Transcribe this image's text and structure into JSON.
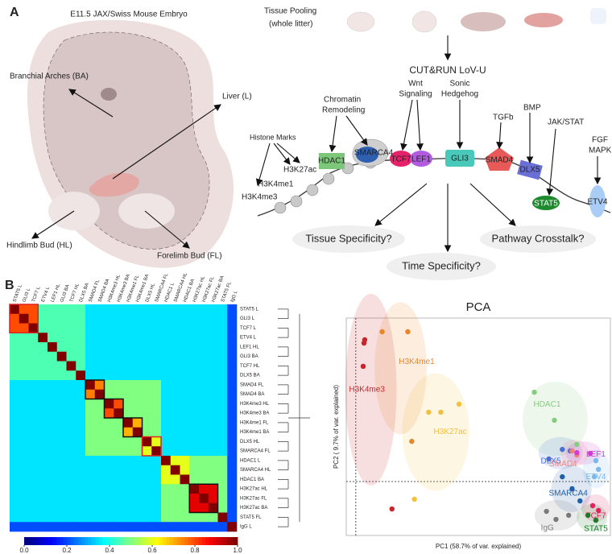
{
  "panel_labels": [
    "A",
    "B"
  ],
  "panel_a": {
    "embryo_title": "E11.5 JAX/Swiss Mouse Embryo",
    "tissues": [
      "Branchial Arches (BA)",
      "Liver (L)",
      "Hindlimb Bud (HL)",
      "Forelimb Bud (FL)"
    ],
    "pooling": [
      "Tissue Pooling",
      "(whole litter)"
    ],
    "method": "CUT&RUN LoV-U",
    "pathways": {
      "chromatin": [
        "Chromatin",
        "Remodeling"
      ],
      "wnt": [
        "Wnt",
        "Signaling"
      ],
      "shh": [
        "Sonic",
        "Hedgehog"
      ],
      "tgfb": "TGFb",
      "bmp": "BMP",
      "jak": "JAK/STAT",
      "fgf": [
        "FGF",
        "MAPK"
      ],
      "histone": "Histone Marks"
    },
    "histone_marks": [
      "H3K27ac",
      "H3K4me1",
      "H3K4me3"
    ],
    "proteins": [
      "HDAC1",
      "SMARCA4",
      "TCF7",
      "LEF1",
      "GLI3",
      "SMAD4",
      "DLX5",
      "STAT5",
      "ETV4"
    ],
    "questions": [
      "Tissue Specificity?",
      "Time Specificity?",
      "Pathway Crosstalk?"
    ]
  },
  "chart_data": [
    {
      "type": "heatmap",
      "categories": [
        "STAT5 L",
        "GLI3 L",
        "TCF7 L",
        "ETV4 L",
        "LEF1 HL",
        "GLI3 BA",
        "TCF7 HL",
        "DLX5 BA",
        "SMAD4 FL",
        "SMAD4 BA",
        "H3K4me3 HL",
        "H3K4me3 BA",
        "H3K4me1 FL",
        "H3K4me1 BA",
        "DLX5 HL",
        "SMARCA4 FL",
        "HDAC1 L",
        "SMARCA4 HL",
        "HDAC1 BA",
        "H3K27ac HL",
        "H3K27ac FL",
        "H3K27ac BA",
        "STAT5 FL",
        "IgG L"
      ],
      "values": [
        [
          1,
          0.8,
          0.8,
          0.45,
          0.45,
          0.45,
          0.45,
          0.45,
          0.35,
          0.35,
          0.35,
          0.35,
          0.35,
          0.35,
          0.35,
          0.35,
          0.35,
          0.35,
          0.35,
          0.35,
          0.35,
          0.35,
          0.35,
          0.2
        ],
        [
          0.8,
          1,
          0.8,
          0.45,
          0.45,
          0.45,
          0.45,
          0.45,
          0.35,
          0.35,
          0.35,
          0.35,
          0.35,
          0.35,
          0.35,
          0.35,
          0.35,
          0.35,
          0.35,
          0.35,
          0.35,
          0.35,
          0.35,
          0.2
        ],
        [
          0.8,
          0.8,
          1,
          0.45,
          0.45,
          0.45,
          0.45,
          0.45,
          0.35,
          0.35,
          0.35,
          0.35,
          0.35,
          0.35,
          0.35,
          0.35,
          0.35,
          0.35,
          0.35,
          0.35,
          0.35,
          0.35,
          0.35,
          0.2
        ],
        [
          0.45,
          0.45,
          0.45,
          1,
          0.45,
          0.45,
          0.45,
          0.45,
          0.35,
          0.35,
          0.35,
          0.35,
          0.35,
          0.35,
          0.35,
          0.35,
          0.35,
          0.35,
          0.35,
          0.35,
          0.35,
          0.35,
          0.35,
          0.2
        ],
        [
          0.45,
          0.45,
          0.45,
          0.45,
          1,
          0.45,
          0.45,
          0.45,
          0.35,
          0.35,
          0.35,
          0.35,
          0.35,
          0.35,
          0.35,
          0.35,
          0.35,
          0.35,
          0.35,
          0.35,
          0.35,
          0.35,
          0.35,
          0.2
        ],
        [
          0.45,
          0.45,
          0.45,
          0.45,
          0.45,
          1,
          0.45,
          0.45,
          0.35,
          0.35,
          0.35,
          0.35,
          0.35,
          0.35,
          0.35,
          0.35,
          0.35,
          0.35,
          0.35,
          0.35,
          0.35,
          0.35,
          0.35,
          0.2
        ],
        [
          0.45,
          0.45,
          0.45,
          0.45,
          0.45,
          0.45,
          1,
          0.45,
          0.35,
          0.35,
          0.35,
          0.35,
          0.35,
          0.35,
          0.35,
          0.35,
          0.35,
          0.35,
          0.35,
          0.35,
          0.35,
          0.35,
          0.35,
          0.2
        ],
        [
          0.45,
          0.45,
          0.45,
          0.45,
          0.45,
          0.45,
          0.45,
          1,
          0.35,
          0.35,
          0.35,
          0.35,
          0.35,
          0.35,
          0.35,
          0.35,
          0.35,
          0.35,
          0.35,
          0.35,
          0.35,
          0.35,
          0.35,
          0.2
        ],
        [
          0.35,
          0.35,
          0.35,
          0.35,
          0.35,
          0.35,
          0.35,
          0.35,
          1,
          0.75,
          0.5,
          0.5,
          0.5,
          0.5,
          0.5,
          0.5,
          0.35,
          0.35,
          0.35,
          0.35,
          0.35,
          0.35,
          0.35,
          0.2
        ],
        [
          0.35,
          0.35,
          0.35,
          0.35,
          0.35,
          0.35,
          0.35,
          0.35,
          0.75,
          1,
          0.5,
          0.5,
          0.5,
          0.5,
          0.5,
          0.5,
          0.35,
          0.35,
          0.35,
          0.35,
          0.35,
          0.35,
          0.35,
          0.2
        ],
        [
          0.35,
          0.35,
          0.35,
          0.35,
          0.35,
          0.35,
          0.35,
          0.35,
          0.5,
          0.5,
          1,
          0.8,
          0.5,
          0.5,
          0.5,
          0.5,
          0.35,
          0.35,
          0.35,
          0.35,
          0.35,
          0.35,
          0.35,
          0.2
        ],
        [
          0.35,
          0.35,
          0.35,
          0.35,
          0.35,
          0.35,
          0.35,
          0.35,
          0.5,
          0.5,
          0.8,
          1,
          0.5,
          0.5,
          0.5,
          0.5,
          0.35,
          0.35,
          0.35,
          0.35,
          0.35,
          0.35,
          0.35,
          0.2
        ],
        [
          0.35,
          0.35,
          0.35,
          0.35,
          0.35,
          0.35,
          0.35,
          0.35,
          0.5,
          0.5,
          0.5,
          0.5,
          1,
          0.7,
          0.5,
          0.5,
          0.35,
          0.35,
          0.35,
          0.35,
          0.35,
          0.35,
          0.35,
          0.2
        ],
        [
          0.35,
          0.35,
          0.35,
          0.35,
          0.35,
          0.35,
          0.35,
          0.35,
          0.5,
          0.5,
          0.5,
          0.5,
          0.7,
          1,
          0.5,
          0.5,
          0.35,
          0.35,
          0.35,
          0.35,
          0.35,
          0.35,
          0.35,
          0.2
        ],
        [
          0.35,
          0.35,
          0.35,
          0.35,
          0.35,
          0.35,
          0.35,
          0.35,
          0.5,
          0.5,
          0.5,
          0.5,
          0.5,
          0.5,
          1,
          0.6,
          0.35,
          0.35,
          0.35,
          0.35,
          0.35,
          0.35,
          0.35,
          0.2
        ],
        [
          0.35,
          0.35,
          0.35,
          0.35,
          0.35,
          0.35,
          0.35,
          0.35,
          0.5,
          0.5,
          0.5,
          0.5,
          0.5,
          0.5,
          0.6,
          1,
          0.35,
          0.35,
          0.35,
          0.35,
          0.35,
          0.35,
          0.35,
          0.2
        ],
        [
          0.35,
          0.35,
          0.35,
          0.35,
          0.35,
          0.35,
          0.35,
          0.35,
          0.35,
          0.35,
          0.35,
          0.35,
          0.35,
          0.35,
          0.35,
          0.35,
          1,
          0.6,
          0.6,
          0.5,
          0.5,
          0.5,
          0.5,
          0.2
        ],
        [
          0.35,
          0.35,
          0.35,
          0.35,
          0.35,
          0.35,
          0.35,
          0.35,
          0.35,
          0.35,
          0.35,
          0.35,
          0.35,
          0.35,
          0.35,
          0.35,
          0.6,
          1,
          0.6,
          0.5,
          0.5,
          0.5,
          0.5,
          0.2
        ],
        [
          0.35,
          0.35,
          0.35,
          0.35,
          0.35,
          0.35,
          0.35,
          0.35,
          0.35,
          0.35,
          0.35,
          0.35,
          0.35,
          0.35,
          0.35,
          0.35,
          0.6,
          0.6,
          1,
          0.5,
          0.5,
          0.5,
          0.5,
          0.2
        ],
        [
          0.35,
          0.35,
          0.35,
          0.35,
          0.35,
          0.35,
          0.35,
          0.35,
          0.35,
          0.35,
          0.35,
          0.35,
          0.35,
          0.35,
          0.35,
          0.35,
          0.5,
          0.5,
          0.5,
          1,
          0.9,
          0.9,
          0.5,
          0.2
        ],
        [
          0.35,
          0.35,
          0.35,
          0.35,
          0.35,
          0.35,
          0.35,
          0.35,
          0.35,
          0.35,
          0.35,
          0.35,
          0.35,
          0.35,
          0.35,
          0.35,
          0.5,
          0.5,
          0.5,
          0.9,
          1,
          0.9,
          0.5,
          0.2
        ],
        [
          0.35,
          0.35,
          0.35,
          0.35,
          0.35,
          0.35,
          0.35,
          0.35,
          0.35,
          0.35,
          0.35,
          0.35,
          0.35,
          0.35,
          0.35,
          0.35,
          0.5,
          0.5,
          0.5,
          0.9,
          0.9,
          1,
          0.5,
          0.2
        ],
        [
          0.35,
          0.35,
          0.35,
          0.35,
          0.35,
          0.35,
          0.35,
          0.35,
          0.35,
          0.35,
          0.35,
          0.35,
          0.35,
          0.35,
          0.35,
          0.35,
          0.5,
          0.5,
          0.5,
          0.5,
          0.5,
          0.5,
          1,
          0.2
        ],
        [
          0.2,
          0.2,
          0.2,
          0.2,
          0.2,
          0.2,
          0.2,
          0.2,
          0.2,
          0.2,
          0.2,
          0.2,
          0.2,
          0.2,
          0.2,
          0.2,
          0.2,
          0.2,
          0.2,
          0.2,
          0.2,
          0.2,
          0.2,
          1
        ]
      ],
      "zlim": [
        0,
        1
      ],
      "zticks": [
        {
          "value": 0,
          "label": "0.0"
        },
        0.2,
        0.4,
        0.6,
        0.8,
        {
          "value": 1,
          "label": "1.0"
        }
      ],
      "colormap": "jet"
    },
    {
      "type": "scatter",
      "title": "PCA",
      "x_label": "PC1 (58.7% of var. explained)",
      "y_label": "PC2 ( 9.7% of var. explained)",
      "xlim": [
        0,
        100
      ],
      "ylim": [
        0,
        100
      ],
      "vline": 3.6,
      "hline": 24.8,
      "series": [
        {
          "name": "H3K4me3",
          "color": "#c8252b",
          "x": [
            7,
            6.7,
            6.4,
            17.3
          ],
          "y": [
            90,
            88.5,
            77.8,
            12.2
          ]
        },
        {
          "name": "H3K4me1",
          "color": "#e8862a",
          "x": [
            13.6,
            23.3,
            24.8
          ],
          "y": [
            93.7,
            93.7,
            43.3
          ]
        },
        {
          "name": "H3K27ac",
          "color": "#f2c040",
          "x": [
            31.2,
            35.8,
            42.7,
            25.8
          ],
          "y": [
            56.7,
            56.7,
            60.4,
            16.7
          ]
        },
        {
          "name": "HDAC1",
          "color": "#86cc7e",
          "x": [
            71.2,
            78.8,
            87.3
          ],
          "y": [
            65.9,
            53,
            41.9
          ]
        },
        {
          "name": "DLX5",
          "color": "#4a6fd6",
          "x": [
            81.8,
            84.8,
            76.7
          ],
          "y": [
            39.6,
            38.9,
            35.2
          ]
        },
        {
          "name": "SMAD4",
          "color": "#ef7f7a",
          "x": [
            85.5,
            87.3
          ],
          "y": [
            38.9,
            37
          ]
        },
        {
          "name": "LEF1",
          "color": "#d23cd2",
          "x": [
            87.3,
            92.4
          ],
          "y": [
            38.1,
            37.8
          ]
        },
        {
          "name": "ETV4",
          "color": "#7ab8ee",
          "x": [
            94.5,
            95.5,
            93.9
          ],
          "y": [
            34.4,
            30.4,
            27
          ]
        },
        {
          "name": "SMARCA4",
          "color": "#1f5fa8",
          "x": [
            81.8,
            85.5,
            88.5
          ],
          "y": [
            27,
            21.5,
            15.9
          ]
        },
        {
          "name": "TCF7",
          "color": "#e0245e",
          "x": [
            93.3,
            95.5
          ],
          "y": [
            13.7,
            11.5
          ]
        },
        {
          "name": "IgG",
          "color": "#7a7a7a",
          "x": [
            75.8,
            79.4,
            84.2
          ],
          "y": [
            11.1,
            7.4,
            9.3
          ]
        },
        {
          "name": "STAT5",
          "color": "#1a7a2a",
          "x": [
            91.5,
            94.5
          ],
          "y": [
            9.3,
            7
          ]
        }
      ]
    }
  ]
}
